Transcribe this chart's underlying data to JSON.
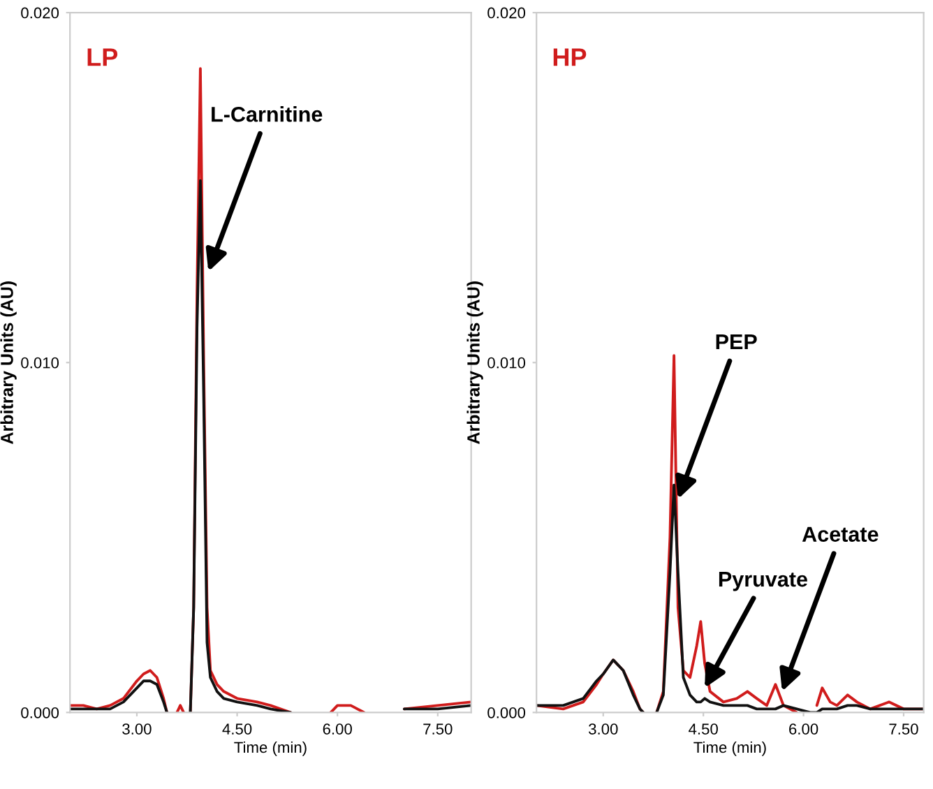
{
  "chart_data": [
    {
      "type": "line",
      "title": "LP",
      "xlabel": "Time (min)",
      "ylabel": "Arbitrary Units (AU)",
      "x": [
        2.0,
        2.2,
        2.4,
        2.6,
        2.8,
        3.0,
        3.1,
        3.2,
        3.3,
        3.4,
        3.45,
        3.5,
        3.6,
        3.65,
        3.7,
        3.75,
        3.8,
        3.85,
        3.9,
        3.95,
        4.0,
        4.05,
        4.1,
        4.2,
        4.3,
        4.5,
        4.8,
        5.0,
        5.3,
        5.5,
        5.9,
        6.0,
        6.2,
        6.4,
        6.5,
        7.0,
        7.5,
        8.0
      ],
      "series": [
        {
          "color": "#d01c1c",
          "values": [
            0.0002,
            0.0002,
            0.0001,
            0.0002,
            0.0004,
            0.0009,
            0.0011,
            0.0012,
            0.001,
            0.0004,
            0.0,
            null,
            0.0,
            0.0002,
            0.0,
            null,
            0.0,
            0.003,
            0.012,
            0.0184,
            0.01,
            0.003,
            0.0012,
            0.0008,
            0.0006,
            0.0004,
            0.0003,
            0.0002,
            0.0,
            null,
            0.0,
            0.0002,
            0.0002,
            0.0,
            null,
            0.0001,
            0.0002,
            0.0003
          ]
        },
        {
          "color": "#111111",
          "values": [
            0.0001,
            0.0001,
            0.0001,
            0.0001,
            0.0003,
            0.0007,
            0.0009,
            0.0009,
            0.0008,
            0.0003,
            0.0,
            null,
            null,
            null,
            null,
            null,
            0.0,
            0.003,
            0.011,
            0.0152,
            0.009,
            0.002,
            0.001,
            0.0006,
            0.0004,
            0.0003,
            0.0002,
            0.0001,
            0.0,
            null,
            null,
            null,
            null,
            null,
            null,
            0.0001,
            0.0001,
            0.0002
          ]
        }
      ],
      "xlim": [
        2,
        8
      ],
      "xticks": [
        {
          "value": 3,
          "label": "3.00"
        },
        {
          "value": 4.5,
          "label": "4.50"
        },
        {
          "value": 6,
          "label": "6.00"
        },
        {
          "value": 7.5,
          "label": "7.50"
        }
      ],
      "ylim": [
        0,
        0.02
      ],
      "yticks": [
        {
          "value": 0,
          "label": "0.000"
        },
        {
          "value": 0.01,
          "label": "0.010"
        },
        {
          "value": 0.02,
          "label": "0.020"
        }
      ],
      "annotations": [
        {
          "text": "L-Carnitine",
          "x": 4.07,
          "y": 0.0126
        }
      ]
    },
    {
      "type": "line",
      "title": "HP",
      "xlabel": "Time (min)",
      "ylabel": "Arbitrary Units (AU)",
      "x": [
        2.0,
        2.4,
        2.7,
        2.9,
        3.0,
        3.15,
        3.3,
        3.45,
        3.55,
        3.6,
        3.7,
        3.8,
        3.9,
        4.0,
        4.06,
        4.12,
        4.2,
        4.3,
        4.4,
        4.46,
        4.52,
        4.6,
        4.8,
        5.0,
        5.16,
        5.3,
        5.45,
        5.58,
        5.7,
        5.9,
        6.1,
        6.2,
        6.28,
        6.4,
        6.5,
        6.66,
        6.8,
        7.0,
        7.28,
        7.5,
        7.8
      ],
      "series": [
        {
          "color": "#d01c1c",
          "values": [
            0.0002,
            0.0001,
            0.0003,
            0.0008,
            0.0011,
            0.0015,
            0.0012,
            0.0006,
            0.0001,
            0.0,
            null,
            0.0,
            0.0006,
            0.005,
            0.0102,
            0.003,
            0.0012,
            0.001,
            0.0019,
            0.0026,
            0.0014,
            0.0006,
            0.0003,
            0.0004,
            0.0006,
            0.0004,
            0.0002,
            0.0008,
            0.0002,
            0.0,
            null,
            0.0002,
            0.0007,
            0.0003,
            0.0002,
            0.0005,
            0.0003,
            0.0001,
            0.0003,
            0.0001,
            0.0001
          ]
        },
        {
          "color": "#111111",
          "values": [
            0.0002,
            0.0002,
            0.0004,
            0.0009,
            0.0011,
            0.0015,
            0.0012,
            0.0005,
            0.0001,
            0.0,
            null,
            0.0,
            0.0005,
            0.004,
            0.0065,
            0.004,
            0.001,
            0.0005,
            0.0003,
            0.0003,
            0.0004,
            0.0003,
            0.0002,
            0.0002,
            0.0002,
            0.0001,
            0.0001,
            0.0001,
            0.0002,
            0.0001,
            0.0,
            0.0,
            0.0001,
            0.0001,
            0.0001,
            0.0002,
            0.0002,
            0.0001,
            0.0001,
            0.0001,
            0.0001
          ]
        }
      ],
      "xlim": [
        2,
        7.8
      ],
      "xticks": [
        {
          "value": 3,
          "label": "3.00"
        },
        {
          "value": 4.5,
          "label": "4.50"
        },
        {
          "value": 6,
          "label": "6.00"
        },
        {
          "value": 7.5,
          "label": "7.50"
        }
      ],
      "ylim": [
        0,
        0.02
      ],
      "yticks": [
        {
          "value": 0,
          "label": "0.000"
        },
        {
          "value": 0.01,
          "label": "0.010"
        },
        {
          "value": 0.02,
          "label": "0.020"
        }
      ],
      "annotations": [
        {
          "text": "PEP",
          "x": 4.12,
          "y": 0.0061
        },
        {
          "text": "Pyruvate",
          "x": 4.52,
          "y": 0.0007
        },
        {
          "text": "Acetate",
          "x": 5.68,
          "y": 0.0006
        }
      ]
    }
  ]
}
